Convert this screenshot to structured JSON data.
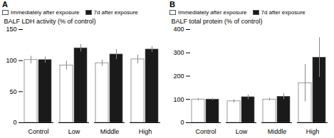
{
  "chart_data": [
    {
      "type": "bar",
      "title": "A",
      "y_label": "BALF LDH activity (% of control)",
      "categories": [
        "Control",
        "Low",
        "Middle",
        "High"
      ],
      "series": [
        {
          "name": "Immediately after exposure",
          "color": "#ffffff",
          "values": [
            101,
            92,
            96,
            102
          ],
          "errors": [
            6,
            7,
            5,
            7
          ]
        },
        {
          "name": "7d after exposure",
          "color": "#1a1a1a",
          "values": [
            101,
            120,
            110,
            118
          ],
          "errors": [
            5,
            6,
            8,
            5
          ]
        }
      ],
      "ylim": [
        0,
        150
      ],
      "yticks": [
        0,
        50,
        100,
        150
      ],
      "legend": "upper left"
    },
    {
      "type": "bar",
      "title": "B",
      "y_label": "BALF total protein (% of control)",
      "categories": [
        "Control",
        "Low",
        "Middle",
        "High"
      ],
      "series": [
        {
          "name": "Immediately after exposure",
          "color": "#ffffff",
          "values": [
            100,
            92,
            100,
            170
          ],
          "errors": [
            5,
            7,
            6,
            80
          ]
        },
        {
          "name": "7d after exposure",
          "color": "#1a1a1a",
          "values": [
            100,
            110,
            112,
            280
          ],
          "errors": [
            5,
            10,
            12,
            85
          ]
        }
      ],
      "ylim": [
        0,
        400
      ],
      "yticks": [
        0,
        100,
        200,
        300,
        400
      ],
      "legend": "upper left"
    }
  ]
}
